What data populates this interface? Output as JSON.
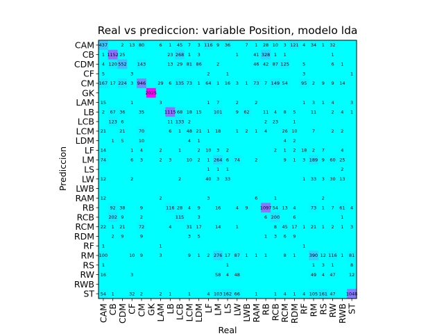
{
  "chart_data": {
    "type": "heatmap",
    "title": "Real vs prediccion: variable Position, modelo lda",
    "xlabel": "Real",
    "ylabel": "Prediccion",
    "colors": {
      "zero": "#00ffff",
      "max": "#ff00ff",
      "text": "#000000",
      "axes": "#000000"
    },
    "labels": [
      "CAM",
      "CB",
      "CDM",
      "CF",
      "CM",
      "GK",
      "LAM",
      "LB",
      "LCB",
      "LCM",
      "LDM",
      "LF",
      "LM",
      "LS",
      "LW",
      "LWB",
      "RAM",
      "RB",
      "RCB",
      "RCM",
      "RDM",
      "RF",
      "RM",
      "RS",
      "RW",
      "RWB",
      "ST"
    ],
    "matrix": [
      [
        437,
        0,
        2,
        13,
        80,
        0,
        6,
        1,
        45,
        7,
        3,
        116,
        9,
        36,
        0,
        7,
        1,
        28,
        10,
        3,
        121,
        4,
        34,
        1,
        32,
        0,
        0
      ],
      [
        1,
        1152,
        25,
        0,
        0,
        0,
        0,
        23,
        268,
        1,
        3,
        0,
        0,
        0,
        1,
        0,
        41,
        328,
        1,
        1,
        0,
        0,
        0,
        0,
        1,
        0,
        0
      ],
      [
        4,
        120,
        552,
        0,
        143,
        0,
        0,
        13,
        29,
        81,
        86,
        0,
        2,
        0,
        0,
        0,
        46,
        42,
        87,
        125,
        0,
        5,
        0,
        0,
        6,
        1,
        0
      ],
      [
        5,
        0,
        0,
        3,
        0,
        0,
        0,
        0,
        0,
        0,
        0,
        2,
        0,
        1,
        0,
        0,
        0,
        0,
        0,
        0,
        0,
        3,
        0,
        0,
        0,
        0,
        1
      ],
      [
        167,
        17,
        224,
        3,
        946,
        0,
        29,
        6,
        135,
        73,
        1,
        64,
        1,
        16,
        3,
        1,
        73,
        7,
        149,
        54,
        0,
        95,
        2,
        9,
        9,
        14,
        0
      ],
      [
        0,
        0,
        0,
        0,
        0,
        2025,
        0,
        0,
        0,
        0,
        0,
        0,
        0,
        0,
        0,
        0,
        0,
        0,
        0,
        0,
        0,
        0,
        0,
        0,
        0,
        0,
        0
      ],
      [
        15,
        0,
        0,
        1,
        0,
        0,
        3,
        0,
        0,
        0,
        0,
        1,
        7,
        0,
        2,
        0,
        2,
        0,
        0,
        0,
        0,
        1,
        3,
        1,
        4,
        0,
        3
      ],
      [
        2,
        67,
        36,
        0,
        35,
        0,
        0,
        1115,
        68,
        18,
        15,
        0,
        101,
        0,
        9,
        62,
        0,
        11,
        4,
        8,
        5,
        0,
        11,
        0,
        2,
        4,
        1
      ],
      [
        0,
        123,
        6,
        0,
        0,
        0,
        0,
        11,
        133,
        2,
        0,
        0,
        0,
        0,
        0,
        0,
        0,
        2,
        23,
        0,
        1,
        0,
        0,
        0,
        0,
        0,
        0
      ],
      [
        21,
        0,
        21,
        0,
        70,
        0,
        0,
        6,
        1,
        48,
        21,
        1,
        18,
        0,
        1,
        2,
        1,
        4,
        0,
        26,
        10,
        0,
        7,
        0,
        2,
        2,
        0
      ],
      [
        0,
        1,
        5,
        0,
        10,
        0,
        0,
        0,
        0,
        4,
        1,
        0,
        0,
        0,
        0,
        0,
        0,
        0,
        0,
        4,
        2,
        0,
        0,
        0,
        0,
        0,
        0
      ],
      [
        14,
        0,
        0,
        1,
        4,
        0,
        2,
        0,
        1,
        0,
        2,
        10,
        3,
        2,
        0,
        0,
        0,
        0,
        2,
        1,
        2,
        18,
        2,
        7,
        0,
        4,
        0
      ],
      [
        74,
        0,
        0,
        6,
        3,
        0,
        2,
        3,
        0,
        10,
        2,
        1,
        264,
        6,
        74,
        0,
        2,
        0,
        0,
        9,
        1,
        3,
        189,
        9,
        60,
        25,
        0
      ],
      [
        0,
        0,
        0,
        0,
        0,
        0,
        0,
        0,
        0,
        0,
        0,
        1,
        1,
        1,
        0,
        0,
        0,
        0,
        0,
        0,
        0,
        0,
        0,
        0,
        0,
        2,
        0
      ],
      [
        12,
        0,
        0,
        2,
        0,
        0,
        0,
        0,
        2,
        0,
        0,
        40,
        3,
        33,
        0,
        0,
        0,
        0,
        0,
        0,
        0,
        1,
        33,
        3,
        30,
        13,
        0
      ],
      [
        0,
        0,
        0,
        0,
        0,
        0,
        0,
        0,
        0,
        0,
        0,
        0,
        0,
        0,
        0,
        0,
        0,
        0,
        0,
        0,
        0,
        0,
        0,
        0,
        0,
        0,
        0
      ],
      [
        12,
        0,
        0,
        0,
        0,
        0,
        2,
        0,
        0,
        0,
        0,
        3,
        0,
        0,
        0,
        0,
        6,
        0,
        1,
        0,
        0,
        0,
        0,
        2,
        0,
        0,
        0
      ],
      [
        0,
        92,
        38,
        0,
        9,
        0,
        0,
        116,
        28,
        4,
        9,
        0,
        16,
        0,
        4,
        9,
        0,
        1097,
        54,
        13,
        4,
        0,
        73,
        1,
        7,
        61,
        4
      ],
      [
        0,
        202,
        9,
        0,
        2,
        0,
        0,
        0,
        115,
        0,
        3,
        0,
        0,
        0,
        0,
        0,
        0,
        6,
        200,
        0,
        6,
        0,
        0,
        0,
        0,
        1,
        0
      ],
      [
        22,
        1,
        21,
        0,
        72,
        0,
        0,
        4,
        0,
        31,
        17,
        0,
        14,
        0,
        1,
        0,
        0,
        0,
        8,
        45,
        17,
        1,
        21,
        1,
        2,
        1,
        3
      ],
      [
        0,
        2,
        9,
        0,
        9,
        0,
        0,
        0,
        0,
        3,
        5,
        0,
        0,
        0,
        0,
        0,
        0,
        1,
        3,
        6,
        9,
        0,
        0,
        0,
        0,
        0,
        0
      ],
      [
        1,
        0,
        0,
        0,
        0,
        0,
        1,
        0,
        0,
        0,
        0,
        0,
        0,
        0,
        0,
        0,
        0,
        0,
        0,
        0,
        0,
        1,
        0,
        0,
        0,
        0,
        0
      ],
      [
        100,
        0,
        0,
        10,
        9,
        0,
        3,
        0,
        0,
        9,
        1,
        2,
        276,
        17,
        87,
        1,
        1,
        1,
        0,
        8,
        1,
        0,
        390,
        12,
        116,
        1,
        81
      ],
      [
        1,
        0,
        0,
        0,
        0,
        0,
        0,
        0,
        0,
        0,
        0,
        0,
        0,
        1,
        0,
        0,
        0,
        0,
        0,
        0,
        0,
        0,
        1,
        3,
        1,
        0,
        8
      ],
      [
        16,
        0,
        0,
        3,
        0,
        0,
        0,
        0,
        0,
        0,
        0,
        0,
        58,
        4,
        48,
        0,
        0,
        0,
        0,
        0,
        0,
        0,
        49,
        4,
        47,
        0,
        12
      ],
      [
        0,
        0,
        0,
        0,
        0,
        0,
        0,
        0,
        0,
        0,
        0,
        0,
        0,
        0,
        0,
        0,
        0,
        0,
        0,
        0,
        0,
        0,
        0,
        0,
        0,
        0,
        0
      ],
      [
        54,
        1,
        0,
        32,
        2,
        0,
        2,
        1,
        0,
        1,
        0,
        4,
        103,
        162,
        66,
        0,
        1,
        0,
        1,
        4,
        1,
        4,
        105,
        161,
        47,
        0,
        1048
      ]
    ]
  }
}
